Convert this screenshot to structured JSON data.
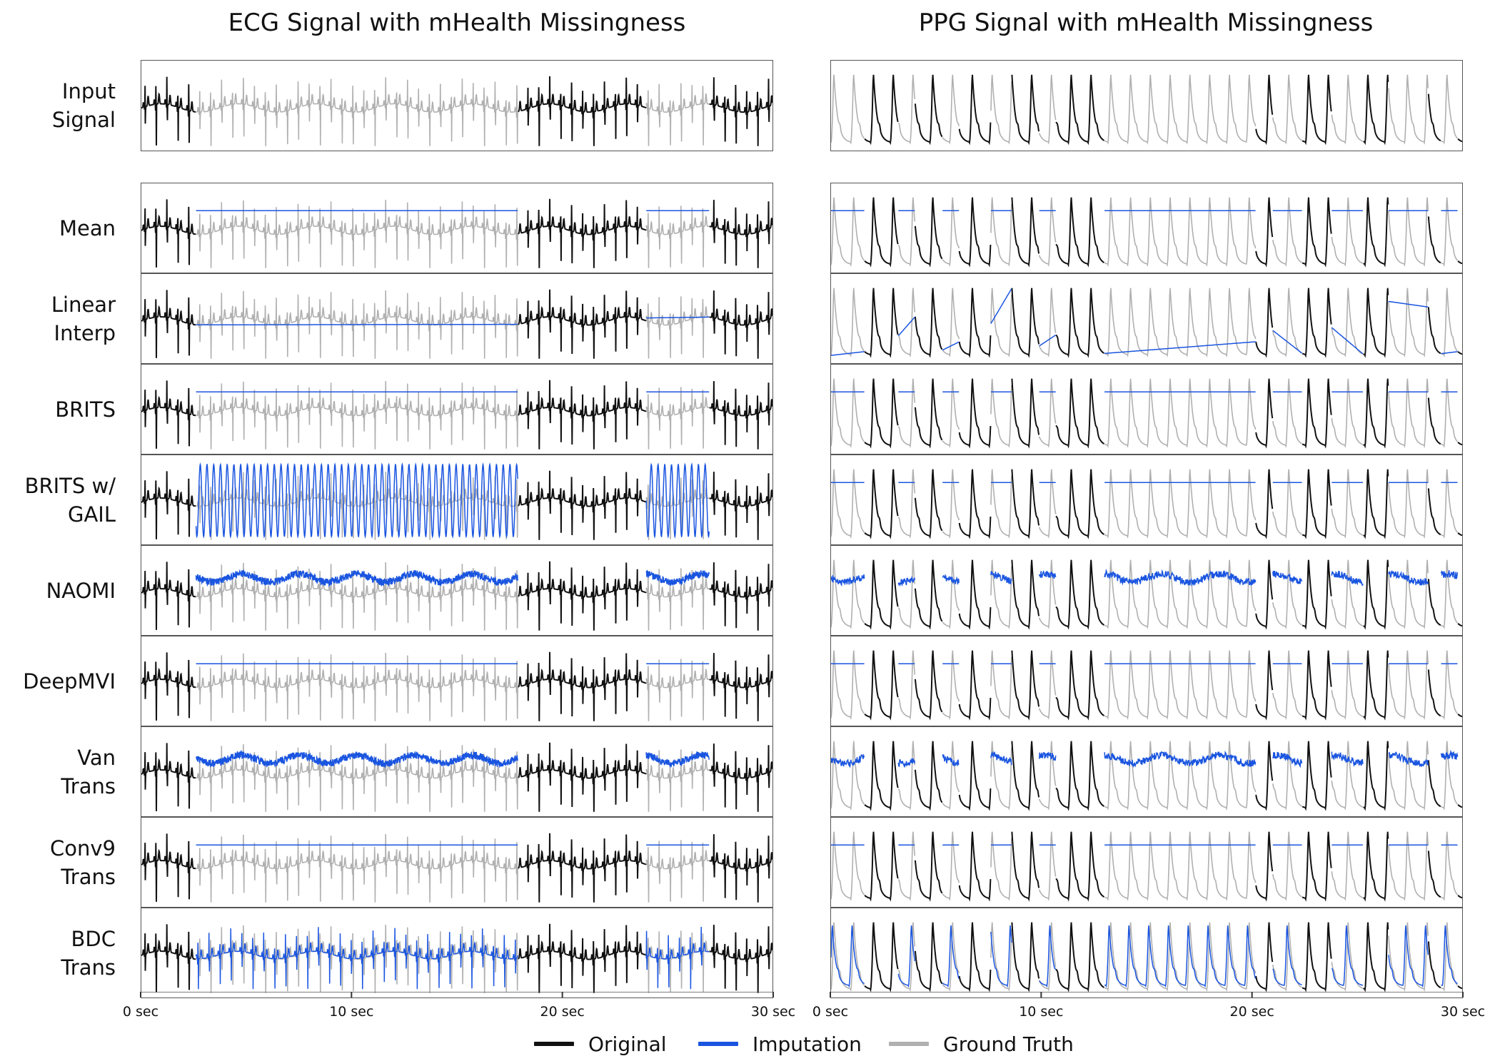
{
  "chart_data": [
    {
      "type": "line",
      "title": "ECG Signal with mHealth Missingness",
      "xlabel": "",
      "ylabel": "",
      "xlim": [
        0,
        30
      ],
      "x_ticks": [
        {
          "value": 0,
          "label": "0 sec"
        },
        {
          "value": 10,
          "label": "10 sec"
        },
        {
          "value": 20,
          "label": "20 sec"
        },
        {
          "value": 30,
          "label": "30 sec"
        }
      ],
      "missing_intervals_sec": [
        [
          2.6,
          17.9
        ],
        [
          24.0,
          27.0
        ]
      ],
      "rows": [
        {
          "name": "Input Signal",
          "imputation": "none",
          "lines": [
            "Input",
            "Signal"
          ]
        },
        {
          "name": "Mean",
          "imputation": "flat",
          "lines": [
            "Mean"
          ]
        },
        {
          "name": "Linear Interp",
          "imputation": "linear",
          "lines": [
            "Linear",
            "Interp"
          ]
        },
        {
          "name": "BRITS",
          "imputation": "flat",
          "lines": [
            "BRITS"
          ]
        },
        {
          "name": "BRITS w/ GAIL",
          "imputation": "oscillating",
          "lines": [
            "BRITS w/",
            "GAIL"
          ]
        },
        {
          "name": "NAOMI",
          "imputation": "noisy",
          "lines": [
            "NAOMI"
          ]
        },
        {
          "name": "DeepMVI",
          "imputation": "flat",
          "lines": [
            "DeepMVI"
          ]
        },
        {
          "name": "Van Trans",
          "imputation": "noisy",
          "lines": [
            "Van",
            "Trans"
          ]
        },
        {
          "name": "Conv9 Trans",
          "imputation": "flat",
          "lines": [
            "Conv9",
            "Trans"
          ]
        },
        {
          "name": "BDC Trans",
          "imputation": "waveform",
          "lines": [
            "BDC",
            "Trans"
          ]
        }
      ]
    },
    {
      "type": "line",
      "title": "PPG Signal with mHealth Missingness",
      "xlabel": "",
      "ylabel": "",
      "xlim": [
        0,
        30
      ],
      "x_ticks": [
        {
          "value": 0,
          "label": "0 sec"
        },
        {
          "value": 10,
          "label": "10 sec"
        },
        {
          "value": 20,
          "label": "20 sec"
        },
        {
          "value": 30,
          "label": "30 sec"
        }
      ],
      "missing_intervals_sec": [
        [
          0,
          1.6
        ],
        [
          3.2,
          4.0
        ],
        [
          5.3,
          6.1
        ],
        [
          7.6,
          8.6
        ],
        [
          9.9,
          10.7
        ],
        [
          13.0,
          20.2
        ],
        [
          21.0,
          22.4
        ],
        [
          23.8,
          25.3
        ],
        [
          26.5,
          28.4
        ],
        [
          29.0,
          29.8
        ]
      ],
      "rows": [
        {
          "name": "Input Signal",
          "imputation": "none"
        },
        {
          "name": "Mean",
          "imputation": "flat"
        },
        {
          "name": "Linear Interp",
          "imputation": "linear"
        },
        {
          "name": "BRITS",
          "imputation": "flat"
        },
        {
          "name": "BRITS w/ GAIL",
          "imputation": "flat"
        },
        {
          "name": "NAOMI",
          "imputation": "noisy"
        },
        {
          "name": "DeepMVI",
          "imputation": "flat"
        },
        {
          "name": "Van Trans",
          "imputation": "noisy"
        },
        {
          "name": "Conv9 Trans",
          "imputation": "flat"
        },
        {
          "name": "BDC Trans",
          "imputation": "waveform"
        }
      ]
    }
  ],
  "legend": [
    {
      "key": "original",
      "label": "Original",
      "color": "#111111"
    },
    {
      "key": "imputation",
      "label": "Imputation",
      "color": "#1a55e0"
    },
    {
      "key": "ground_truth",
      "label": "Ground Truth",
      "color": "#b0b0b0"
    }
  ]
}
